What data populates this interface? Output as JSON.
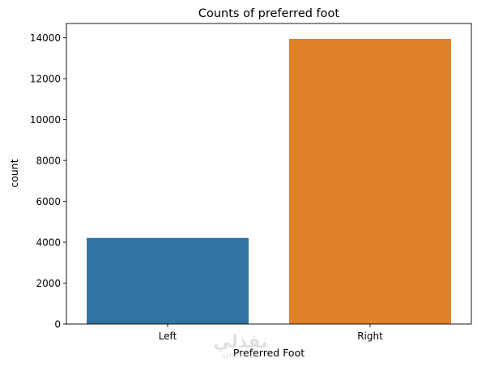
{
  "chart_data": {
    "type": "bar",
    "title": "Counts of preferred foot",
    "xlabel": "Preferred Foot",
    "ylabel": "count",
    "categories": [
      "Left",
      "Right"
    ],
    "values": [
      4211,
      13948
    ],
    "ylim": [
      0,
      14000
    ],
    "yticks": [
      0,
      2000,
      4000,
      6000,
      8000,
      10000,
      12000,
      14000
    ],
    "colors": [
      "#3274a1",
      "#e1812c"
    ],
    "grid": false,
    "legend": "none"
  },
  "watermark": {
    "primary": "نفذلي",
    "secondary": "nafezly.com"
  }
}
